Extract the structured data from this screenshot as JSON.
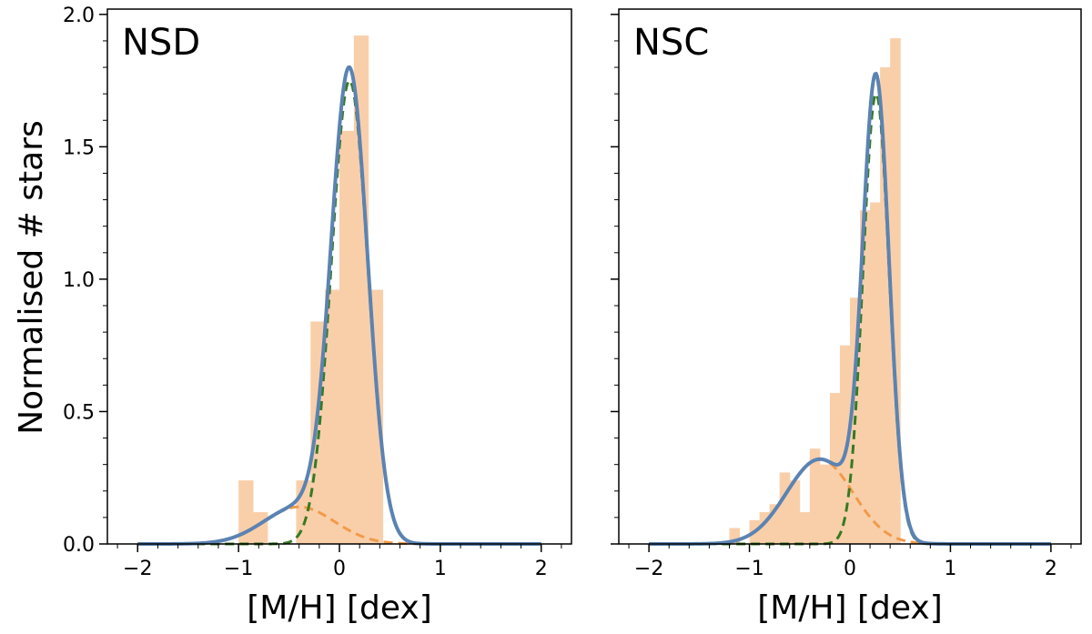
{
  "chart_data": [
    {
      "type": "bar",
      "title": "NSD",
      "xlabel": "[M/H] [dex]",
      "ylabel": "Normalised # stars",
      "xlim": [
        -2.3,
        2.3
      ],
      "ylim": [
        0,
        2.02
      ],
      "xticks": [
        -2,
        -1,
        0,
        1,
        2
      ],
      "xtick_labels": [
        "−2",
        "−1",
        "0",
        "1",
        "2"
      ],
      "yticks": [
        0,
        0.5,
        1,
        1.5,
        2
      ],
      "ytick_labels": [
        "0.0",
        "0.5",
        "1.0",
        "1.5",
        "2.0"
      ],
      "histogram": {
        "bin_width": 0.1429,
        "bins": [
          {
            "x0": -1.0,
            "value": 0.24
          },
          {
            "x0": -0.857,
            "value": 0.12
          },
          {
            "x0": -0.714,
            "value": 0.0
          },
          {
            "x0": -0.571,
            "value": 0.0
          },
          {
            "x0": -0.429,
            "value": 0.24
          },
          {
            "x0": -0.286,
            "value": 0.84
          },
          {
            "x0": -0.143,
            "value": 0.96
          },
          {
            "x0": 0.0,
            "value": 1.56
          },
          {
            "x0": 0.143,
            "value": 1.92
          },
          {
            "x0": 0.286,
            "value": 0.96
          }
        ]
      },
      "components": {
        "metal_poor": {
          "mean": -0.4,
          "sigma": 0.35,
          "peak": 0.14
        },
        "metal_rich": {
          "mean": 0.1,
          "sigma": 0.18,
          "peak": 1.75
        }
      },
      "series": [
        {
          "name": "total fit",
          "style": "solid"
        },
        {
          "name": "metal-poor component",
          "style": "dashed"
        },
        {
          "name": "metal-rich component",
          "style": "dashed"
        }
      ]
    },
    {
      "type": "bar",
      "title": "NSC",
      "xlabel": "[M/H] [dex]",
      "ylabel": "",
      "xlim": [
        -2.3,
        2.3
      ],
      "ylim": [
        0,
        2.02
      ],
      "xticks": [
        -2,
        -1,
        0,
        1,
        2
      ],
      "xtick_labels": [
        "−2",
        "−1",
        "0",
        "1",
        "2"
      ],
      "yticks": [
        0,
        0.5,
        1,
        1.5,
        2
      ],
      "ytick_labels": [
        "",
        "",
        "",
        "",
        ""
      ],
      "histogram": {
        "bin_width": 0.1,
        "bins": [
          {
            "x0": -1.2,
            "value": 0.06
          },
          {
            "x0": -1.1,
            "value": 0.0
          },
          {
            "x0": -1.0,
            "value": 0.09
          },
          {
            "x0": -0.9,
            "value": 0.12
          },
          {
            "x0": -0.8,
            "value": 0.15
          },
          {
            "x0": -0.7,
            "value": 0.27
          },
          {
            "x0": -0.6,
            "value": 0.24
          },
          {
            "x0": -0.5,
            "value": 0.12
          },
          {
            "x0": -0.4,
            "value": 0.36
          },
          {
            "x0": -0.3,
            "value": 0.3
          },
          {
            "x0": -0.2,
            "value": 0.57
          },
          {
            "x0": -0.1,
            "value": 0.75
          },
          {
            "x0": 0.0,
            "value": 0.93
          },
          {
            "x0": 0.1,
            "value": 1.26
          },
          {
            "x0": 0.2,
            "value": 1.29
          },
          {
            "x0": 0.3,
            "value": 1.8
          },
          {
            "x0": 0.4,
            "value": 1.91
          }
        ]
      },
      "components": {
        "metal_poor": {
          "mean": -0.3,
          "sigma": 0.33,
          "peak": 0.32
        },
        "metal_rich": {
          "mean": 0.26,
          "sigma": 0.13,
          "peak": 1.7
        }
      },
      "series": [
        {
          "name": "total fit",
          "style": "solid"
        },
        {
          "name": "metal-poor component",
          "style": "dashed"
        },
        {
          "name": "metal-rich component",
          "style": "dashed"
        }
      ]
    }
  ],
  "colors": {
    "histogram": "#f9cfaa",
    "total": "#5b83b2",
    "metal_poor": "#f29a4a",
    "metal_rich": "#367a23"
  }
}
